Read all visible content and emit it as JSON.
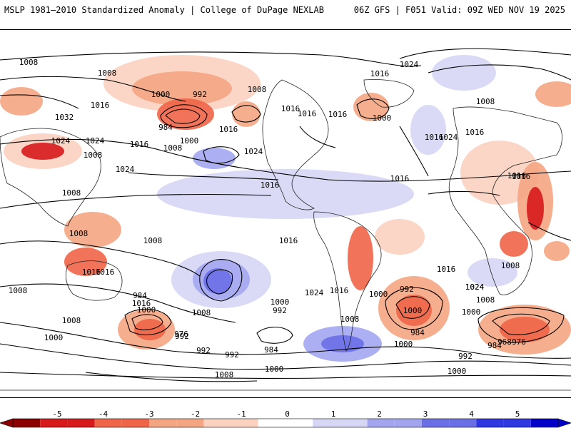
{
  "header": {
    "left": "MSLP 1981–2010 Standardized Anomaly | College of DuPage NEXLAB",
    "right": "06Z GFS | F051 Valid: 09Z WED NOV 19 2025"
  },
  "colors": {
    "neg5": "#8b0000",
    "neg4": "#d7191c",
    "neg3": "#ef6548",
    "neg2": "#f4a582",
    "neg1": "#fbd2c0",
    "zero": "#ffffff",
    "pos1": "#d6d6f5",
    "pos2": "#a3a6ef",
    "pos3": "#6a6fe6",
    "pos4": "#2f37e0",
    "pos5": "#0000c8"
  },
  "colorbar": {
    "ticks": [
      "-5",
      "-4",
      "-3",
      "-2",
      "-1",
      "0",
      "1",
      "2",
      "3",
      "4",
      "5"
    ]
  },
  "isobar_labels": [
    "1016",
    "1008",
    "1008",
    "1016",
    "1024",
    "1032",
    "1024",
    "1016",
    "1008",
    "992",
    "1000",
    "984",
    "1000",
    "1008",
    "1016",
    "1024",
    "1008",
    "1016",
    "1016",
    "1000",
    "1016",
    "1024",
    "1016",
    "1024",
    "1016",
    "1016",
    "1024",
    "1008",
    "1008",
    "1008",
    "1016",
    "1016",
    "1008",
    "1016",
    "1000",
    "992",
    "984",
    "976",
    "1008",
    "1000",
    "1016",
    "1024",
    "1000",
    "1016",
    "1024",
    "992",
    "984",
    "992",
    "992",
    "1000",
    "1008",
    "1008",
    "992",
    "984",
    "1000",
    "1024",
    "1008",
    "1000",
    "976",
    "968",
    "984",
    "992",
    "1000",
    "1016",
    "1000",
    "1008",
    "1008",
    "1000",
    "1016",
    "1008",
    "1016",
    "1016",
    "1016"
  ]
}
